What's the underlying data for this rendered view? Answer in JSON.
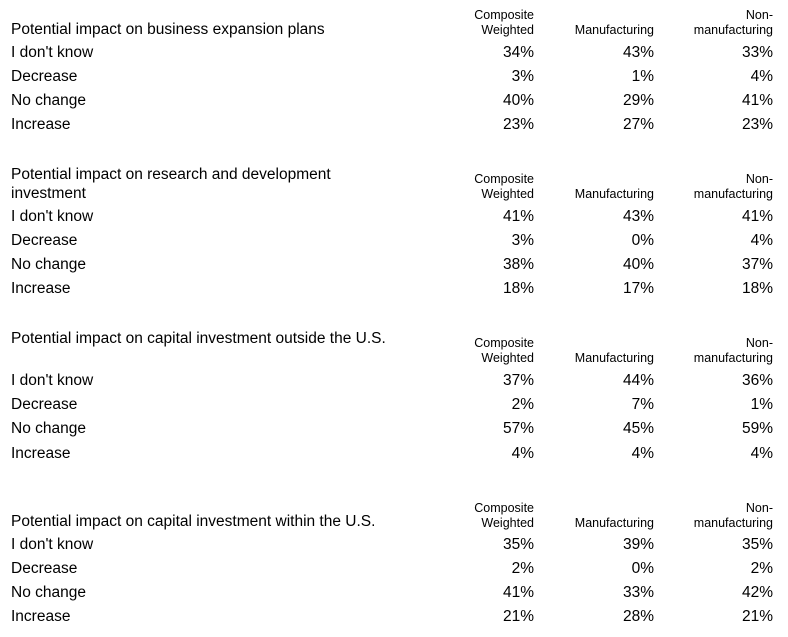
{
  "headers": {
    "composite": [
      "Composite",
      "Weighted"
    ],
    "manufacturing": "Manufacturing",
    "nonmanufacturing": [
      "Non-",
      "manufacturing"
    ]
  },
  "sections": [
    {
      "title": "Potential impact on business expansion plans",
      "rows": [
        {
          "label": "I don't know",
          "composite": "34%",
          "manufacturing": "43%",
          "nonmanufacturing": "33%"
        },
        {
          "label": "Decrease",
          "composite": "3%",
          "manufacturing": "1%",
          "nonmanufacturing": "4%"
        },
        {
          "label": "No change",
          "composite": "40%",
          "manufacturing": "29%",
          "nonmanufacturing": "41%"
        },
        {
          "label": "Increase",
          "composite": "23%",
          "manufacturing": "27%",
          "nonmanufacturing": "23%"
        }
      ]
    },
    {
      "title": "Potential impact on research and development investment",
      "rows": [
        {
          "label": "I don't know",
          "composite": "41%",
          "manufacturing": "43%",
          "nonmanufacturing": "41%"
        },
        {
          "label": "Decrease",
          "composite": "3%",
          "manufacturing": "0%",
          "nonmanufacturing": "4%"
        },
        {
          "label": "No change",
          "composite": "38%",
          "manufacturing": "40%",
          "nonmanufacturing": "37%"
        },
        {
          "label": "Increase",
          "composite": "18%",
          "manufacturing": "17%",
          "nonmanufacturing": "18%"
        }
      ]
    },
    {
      "title": "Potential impact on capital investment outside the U.S.",
      "rows": [
        {
          "label": "I don't know",
          "composite": "37%",
          "manufacturing": "44%",
          "nonmanufacturing": "36%"
        },
        {
          "label": "Decrease",
          "composite": "2%",
          "manufacturing": "7%",
          "nonmanufacturing": "1%"
        },
        {
          "label": "No change",
          "composite": "57%",
          "manufacturing": "45%",
          "nonmanufacturing": "59%"
        },
        {
          "label": "Increase",
          "composite": "4%",
          "manufacturing": "4%",
          "nonmanufacturing": "4%"
        }
      ]
    },
    {
      "title": "Potential impact on capital investment within the U.S.",
      "rows": [
        {
          "label": "I don't know",
          "composite": "35%",
          "manufacturing": "39%",
          "nonmanufacturing": "35%"
        },
        {
          "label": "Decrease",
          "composite": "2%",
          "manufacturing": "0%",
          "nonmanufacturing": "2%"
        },
        {
          "label": "No change",
          "composite": "41%",
          "manufacturing": "33%",
          "nonmanufacturing": "42%"
        },
        {
          "label": "Increase",
          "composite": "21%",
          "manufacturing": "28%",
          "nonmanufacturing": "21%"
        }
      ]
    }
  ]
}
